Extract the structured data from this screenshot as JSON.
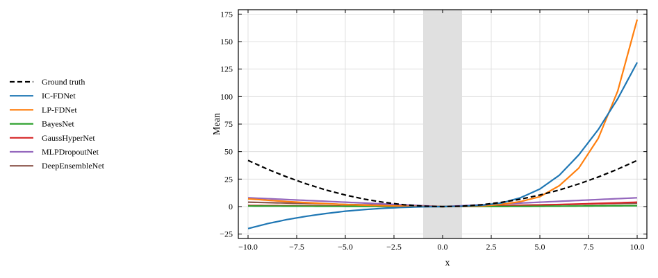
{
  "chart_data": {
    "type": "line",
    "title": "",
    "xlabel": "x",
    "ylabel": "Mean",
    "xlim": [
      -10.5,
      10.5
    ],
    "ylim": [
      -29,
      179
    ],
    "x_ticks": [
      -10.0,
      -7.5,
      -5.0,
      -2.5,
      0.0,
      2.5,
      5.0,
      7.5,
      10.0
    ],
    "x_tick_labels": [
      "−10.0",
      "−7.5",
      "−5.0",
      "−2.5",
      "0.0",
      "2.5",
      "5.0",
      "7.5",
      "10.0"
    ],
    "y_ticks": [
      -25,
      0,
      25,
      50,
      75,
      100,
      125,
      150,
      175
    ],
    "y_tick_labels": [
      "−25",
      "0",
      "25",
      "50",
      "75",
      "100",
      "125",
      "150",
      "175"
    ],
    "grid": true,
    "shaded_region": {
      "x": [
        -1.0,
        1.0
      ],
      "color": "#e0e0e0"
    },
    "legend_placement": "left outside",
    "x": [
      -10,
      -9,
      -8,
      -7,
      -6,
      -5,
      -4,
      -3,
      -2,
      -1,
      0,
      1,
      2,
      3,
      4,
      5,
      6,
      7,
      8,
      9,
      10
    ],
    "series": [
      {
        "name": "Ground truth",
        "color": "#000000",
        "dashed": true,
        "values": [
          42,
          34,
          26.9,
          20.6,
          15.1,
          10.5,
          6.7,
          3.8,
          1.7,
          0.4,
          0,
          0.4,
          1.7,
          3.8,
          6.7,
          10.5,
          15.1,
          20.6,
          26.9,
          34,
          42
        ]
      },
      {
        "name": "IC-FDNet",
        "color": "#1f77b4",
        "dashed": false,
        "values": [
          -20,
          -15.5,
          -11.8,
          -8.8,
          -6.3,
          -4.2,
          -2.7,
          -1.5,
          -0.7,
          -0.2,
          0,
          0.3,
          1.2,
          3.2,
          8,
          16,
          28.5,
          47,
          70,
          98,
          131
        ]
      },
      {
        "name": "LP-FDNet",
        "color": "#ff7f0e",
        "dashed": false,
        "values": [
          7,
          5.8,
          4.6,
          3.6,
          2.7,
          1.9,
          1.3,
          0.8,
          0.4,
          0.1,
          0,
          0.1,
          0.5,
          2,
          4.5,
          9,
          19,
          35,
          62,
          105,
          170
        ]
      },
      {
        "name": "BayesNet",
        "color": "#2ca02c",
        "dashed": false,
        "values": [
          0.5,
          0.45,
          0.4,
          0.35,
          0.3,
          0.25,
          0.2,
          0.15,
          0.1,
          0.05,
          0,
          0.05,
          0.1,
          0.15,
          0.2,
          0.3,
          0.4,
          0.5,
          0.6,
          0.7,
          0.8
        ]
      },
      {
        "name": "GaussHyperNet",
        "color": "#d62728",
        "dashed": false,
        "values": [
          1,
          0.9,
          0.8,
          0.7,
          0.6,
          0.5,
          0.4,
          0.3,
          0.2,
          0.1,
          0,
          0.2,
          0.5,
          0.8,
          1.1,
          1.5,
          1.9,
          2.4,
          2.9,
          3.4,
          4
        ]
      },
      {
        "name": "MLPDropoutNet",
        "color": "#9467bd",
        "dashed": false,
        "values": [
          8,
          7.2,
          6.4,
          5.6,
          4.8,
          4,
          3.2,
          2.4,
          1.6,
          0.8,
          0,
          0.8,
          1.6,
          2.4,
          3.2,
          4,
          4.8,
          5.6,
          6.4,
          7.2,
          8
        ]
      },
      {
        "name": "DeepEnsembleNet",
        "color": "#8c564b",
        "dashed": false,
        "values": [
          4,
          3.6,
          3.2,
          2.8,
          2.4,
          2,
          1.6,
          1.2,
          0.8,
          0.4,
          0,
          0.3,
          0.6,
          0.9,
          1.2,
          1.5,
          1.8,
          2.1,
          2.4,
          2.7,
          3
        ]
      }
    ]
  }
}
